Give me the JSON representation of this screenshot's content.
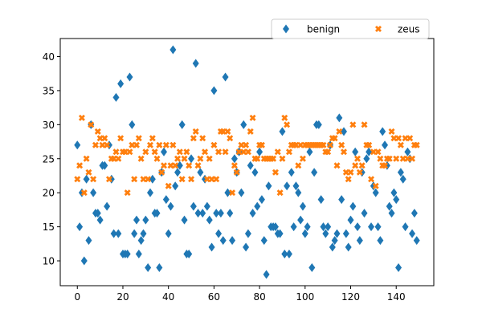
{
  "chart_data": {
    "type": "scatter",
    "title": "",
    "xlabel": "",
    "ylabel": "",
    "xlim": [
      -7.5,
      156.5
    ],
    "ylim": [
      6.35,
      42.65
    ],
    "xticks": [
      0,
      20,
      40,
      60,
      80,
      100,
      120,
      140
    ],
    "yticks": [
      10,
      15,
      20,
      25,
      30,
      35,
      40
    ],
    "grid": false,
    "legend": {
      "placement": "top-right, above plot",
      "ncol": 2
    },
    "series": [
      {
        "name": "benign",
        "color": "#1f77b4",
        "marker": "diamond",
        "points": [
          [
            0,
            27
          ],
          [
            1,
            15
          ],
          [
            2,
            20
          ],
          [
            3,
            10
          ],
          [
            4,
            22
          ],
          [
            5,
            13
          ],
          [
            6,
            30
          ],
          [
            7,
            20
          ],
          [
            8,
            17
          ],
          [
            9,
            17
          ],
          [
            10,
            16
          ],
          [
            11,
            24
          ],
          [
            12,
            24
          ],
          [
            13,
            18
          ],
          [
            14,
            27
          ],
          [
            15,
            22
          ],
          [
            16,
            14
          ],
          [
            17,
            34
          ],
          [
            18,
            14
          ],
          [
            19,
            36
          ],
          [
            20,
            11
          ],
          [
            21,
            11
          ],
          [
            22,
            11
          ],
          [
            23,
            37
          ],
          [
            24,
            30
          ],
          [
            25,
            14
          ],
          [
            26,
            16
          ],
          [
            27,
            11
          ],
          [
            28,
            13
          ],
          [
            29,
            14
          ],
          [
            30,
            16
          ],
          [
            31,
            9
          ],
          [
            32,
            20
          ],
          [
            33,
            22
          ],
          [
            34,
            17
          ],
          [
            35,
            17
          ],
          [
            36,
            9
          ],
          [
            37,
            23
          ],
          [
            38,
            26
          ],
          [
            39,
            19
          ],
          [
            40,
            14
          ],
          [
            41,
            18
          ],
          [
            42,
            41
          ],
          [
            43,
            21
          ],
          [
            44,
            23
          ],
          [
            45,
            24
          ],
          [
            46,
            30
          ],
          [
            47,
            16
          ],
          [
            48,
            11
          ],
          [
            49,
            11
          ],
          [
            50,
            25
          ],
          [
            51,
            18
          ],
          [
            52,
            39
          ],
          [
            53,
            17
          ],
          [
            54,
            23
          ],
          [
            55,
            17
          ],
          [
            56,
            22
          ],
          [
            57,
            18
          ],
          [
            58,
            16
          ],
          [
            59,
            12
          ],
          [
            60,
            35
          ],
          [
            61,
            17
          ],
          [
            62,
            14
          ],
          [
            63,
            17
          ],
          [
            64,
            13
          ],
          [
            65,
            37
          ],
          [
            66,
            20
          ],
          [
            67,
            17
          ],
          [
            68,
            13
          ],
          [
            69,
            25
          ],
          [
            70,
            23
          ],
          [
            71,
            26
          ],
          [
            72,
            20
          ],
          [
            73,
            30
          ],
          [
            74,
            12
          ],
          [
            75,
            14
          ],
          [
            76,
            24
          ],
          [
            77,
            17
          ],
          [
            78,
            23
          ],
          [
            79,
            18
          ],
          [
            80,
            26
          ],
          [
            81,
            19
          ],
          [
            82,
            13
          ],
          [
            83,
            8
          ],
          [
            84,
            21
          ],
          [
            85,
            15
          ],
          [
            86,
            15
          ],
          [
            87,
            15
          ],
          [
            88,
            14
          ],
          [
            89,
            14
          ],
          [
            90,
            29
          ],
          [
            91,
            11
          ],
          [
            92,
            21
          ],
          [
            93,
            11
          ],
          [
            94,
            23
          ],
          [
            95,
            15
          ],
          [
            96,
            21
          ],
          [
            97,
            20
          ],
          [
            98,
            16
          ],
          [
            99,
            18
          ],
          [
            100,
            14
          ],
          [
            101,
            15
          ],
          [
            102,
            26
          ],
          [
            103,
            9
          ],
          [
            104,
            23
          ],
          [
            105,
            30
          ],
          [
            106,
            30
          ],
          [
            107,
            19
          ],
          [
            108,
            15
          ],
          [
            109,
            14
          ],
          [
            110,
            15
          ],
          [
            111,
            27
          ],
          [
            112,
            12
          ],
          [
            113,
            13
          ],
          [
            114,
            14
          ],
          [
            115,
            31
          ],
          [
            116,
            19
          ],
          [
            117,
            29
          ],
          [
            118,
            14
          ],
          [
            119,
            12
          ],
          [
            120,
            16
          ],
          [
            121,
            18
          ],
          [
            122,
            26
          ],
          [
            123,
            15
          ],
          [
            124,
            13
          ],
          [
            125,
            23
          ],
          [
            126,
            17
          ],
          [
            127,
            25
          ],
          [
            128,
            26
          ],
          [
            129,
            15
          ],
          [
            130,
            21
          ],
          [
            131,
            20
          ],
          [
            132,
            15
          ],
          [
            133,
            13
          ],
          [
            134,
            29
          ],
          [
            135,
            27
          ],
          [
            136,
            24
          ],
          [
            137,
            18
          ],
          [
            138,
            17
          ],
          [
            139,
            20
          ],
          [
            140,
            19
          ],
          [
            141,
            9
          ],
          [
            142,
            23
          ],
          [
            143,
            22
          ],
          [
            144,
            15
          ],
          [
            145,
            26
          ],
          [
            146,
            25
          ],
          [
            147,
            14
          ],
          [
            148,
            17
          ],
          [
            149,
            13
          ]
        ]
      },
      {
        "name": "zeus",
        "color": "#ff7f0e",
        "marker": "x-filled",
        "points": [
          [
            0,
            22
          ],
          [
            1,
            24
          ],
          [
            2,
            31
          ],
          [
            3,
            20
          ],
          [
            4,
            25
          ],
          [
            5,
            23
          ],
          [
            6,
            30
          ],
          [
            7,
            22
          ],
          [
            8,
            27
          ],
          [
            9,
            29
          ],
          [
            10,
            28
          ],
          [
            11,
            27
          ],
          [
            12,
            28
          ],
          [
            13,
            27
          ],
          [
            14,
            22
          ],
          [
            15,
            25
          ],
          [
            16,
            25
          ],
          [
            17,
            26
          ],
          [
            18,
            25
          ],
          [
            19,
            28
          ],
          [
            20,
            26
          ],
          [
            21,
            26
          ],
          [
            22,
            20
          ],
          [
            23,
            26
          ],
          [
            24,
            27
          ],
          [
            25,
            22
          ],
          [
            26,
            27
          ],
          [
            27,
            28
          ],
          [
            28,
            25
          ],
          [
            29,
            22
          ],
          [
            30,
            26
          ],
          [
            31,
            22
          ],
          [
            32,
            27
          ],
          [
            33,
            28
          ],
          [
            34,
            26
          ],
          [
            35,
            25
          ],
          [
            36,
            27
          ],
          [
            37,
            23
          ],
          [
            38,
            24
          ],
          [
            39,
            27
          ],
          [
            40,
            21
          ],
          [
            41,
            24
          ],
          [
            42,
            27
          ],
          [
            43,
            24
          ],
          [
            44,
            25
          ],
          [
            45,
            26
          ],
          [
            46,
            22
          ],
          [
            47,
            25
          ],
          [
            48,
            26
          ],
          [
            49,
            24
          ],
          [
            50,
            22
          ],
          [
            51,
            28
          ],
          [
            52,
            29
          ],
          [
            53,
            24
          ],
          [
            54,
            25
          ],
          [
            55,
            28
          ],
          [
            56,
            26
          ],
          [
            57,
            22
          ],
          [
            58,
            25
          ],
          [
            59,
            22
          ],
          [
            60,
            27
          ],
          [
            61,
            22
          ],
          [
            62,
            26
          ],
          [
            63,
            29
          ],
          [
            64,
            29
          ],
          [
            65,
            26
          ],
          [
            66,
            29
          ],
          [
            67,
            28
          ],
          [
            68,
            20
          ],
          [
            69,
            24
          ],
          [
            70,
            23
          ],
          [
            71,
            26
          ],
          [
            72,
            27
          ],
          [
            73,
            26
          ],
          [
            74,
            27
          ],
          [
            75,
            26
          ],
          [
            76,
            29
          ],
          [
            77,
            31
          ],
          [
            78,
            25
          ],
          [
            79,
            25
          ],
          [
            80,
            27
          ],
          [
            81,
            27
          ],
          [
            82,
            25
          ],
          [
            83,
            25
          ],
          [
            84,
            25
          ],
          [
            85,
            25
          ],
          [
            86,
            25
          ],
          [
            87,
            23
          ],
          [
            88,
            26
          ],
          [
            89,
            20
          ],
          [
            90,
            25
          ],
          [
            91,
            31
          ],
          [
            92,
            30
          ],
          [
            93,
            26
          ],
          [
            94,
            27
          ],
          [
            95,
            27
          ],
          [
            96,
            27
          ],
          [
            97,
            24
          ],
          [
            98,
            27
          ],
          [
            99,
            25
          ],
          [
            100,
            27
          ],
          [
            101,
            27
          ],
          [
            102,
            27
          ],
          [
            103,
            27
          ],
          [
            104,
            27
          ],
          [
            105,
            27
          ],
          [
            106,
            27
          ],
          [
            107,
            27
          ],
          [
            108,
            27
          ],
          [
            109,
            26
          ],
          [
            110,
            26
          ],
          [
            111,
            27
          ],
          [
            112,
            28
          ],
          [
            113,
            28
          ],
          [
            114,
            24
          ],
          [
            115,
            29
          ],
          [
            116,
            27
          ],
          [
            117,
            26
          ],
          [
            118,
            23
          ],
          [
            119,
            22
          ],
          [
            120,
            23
          ],
          [
            121,
            30
          ],
          [
            122,
            24
          ],
          [
            123,
            25
          ],
          [
            124,
            23
          ],
          [
            125,
            24
          ],
          [
            126,
            30
          ],
          [
            127,
            27
          ],
          [
            128,
            27
          ],
          [
            129,
            22
          ],
          [
            130,
            26
          ],
          [
            131,
            21
          ],
          [
            132,
            26
          ],
          [
            133,
            25
          ],
          [
            134,
            24
          ],
          [
            135,
            24
          ],
          [
            136,
            25
          ],
          [
            137,
            25
          ],
          [
            138,
            29
          ],
          [
            139,
            28
          ],
          [
            140,
            25
          ],
          [
            141,
            28
          ],
          [
            142,
            27
          ],
          [
            143,
            25
          ],
          [
            144,
            28
          ],
          [
            145,
            25
          ],
          [
            146,
            28
          ],
          [
            147,
            25
          ],
          [
            148,
            27
          ],
          [
            149,
            27
          ]
        ]
      }
    ]
  }
}
